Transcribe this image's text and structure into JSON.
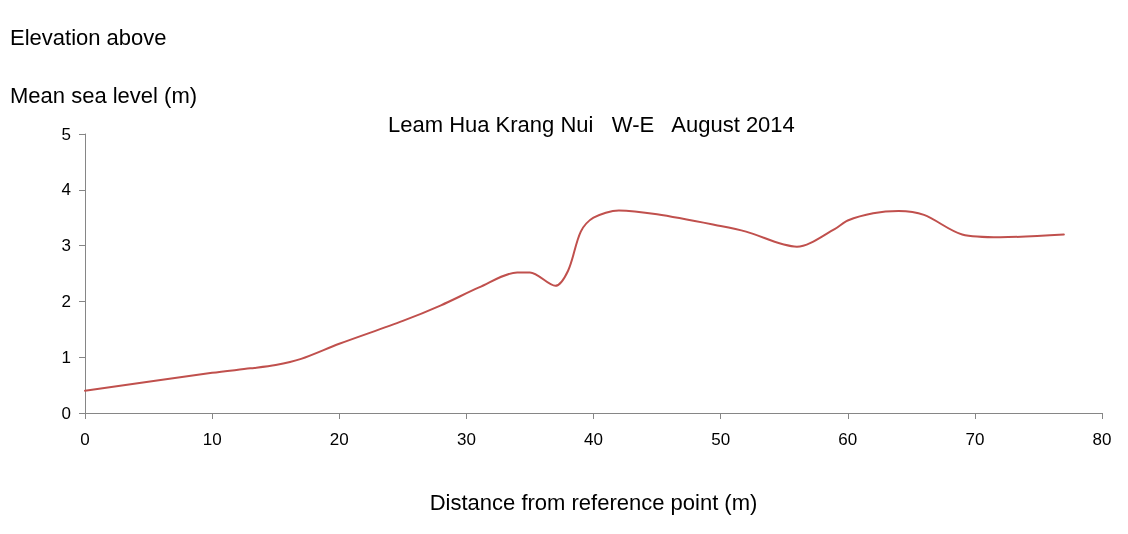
{
  "chart_data": {
    "type": "line",
    "title": "Leam Hua Krang Nui   W-E   August 2014",
    "xlabel": "Distance from reference point (m)",
    "ylabel": "Elevation above\nMean sea level (m)",
    "x": [
      0,
      10,
      13,
      15,
      17,
      20,
      25,
      28,
      31,
      34,
      35,
      37,
      38,
      39,
      40,
      42,
      45,
      50,
      52,
      56,
      59,
      60,
      62,
      64,
      66,
      69,
      72,
      77
    ],
    "series": [
      {
        "color": "#c0504d",
        "values": [
          0.4,
          0.72,
          0.8,
          0.86,
          0.97,
          1.24,
          1.65,
          1.93,
          2.25,
          2.52,
          2.52,
          2.28,
          2.55,
          3.25,
          3.5,
          3.63,
          3.56,
          3.35,
          3.25,
          2.98,
          3.3,
          3.45,
          3.58,
          3.62,
          3.55,
          3.2,
          3.15,
          3.2
        ]
      }
    ],
    "xlim": [
      0,
      80
    ],
    "xticks": [
      0,
      10,
      20,
      30,
      40,
      50,
      60,
      70,
      80
    ],
    "ylim": [
      0,
      5
    ],
    "yticks": [
      0,
      1,
      2,
      3,
      4,
      5
    ],
    "grid": false,
    "marker": "none",
    "line_style": "solid"
  }
}
